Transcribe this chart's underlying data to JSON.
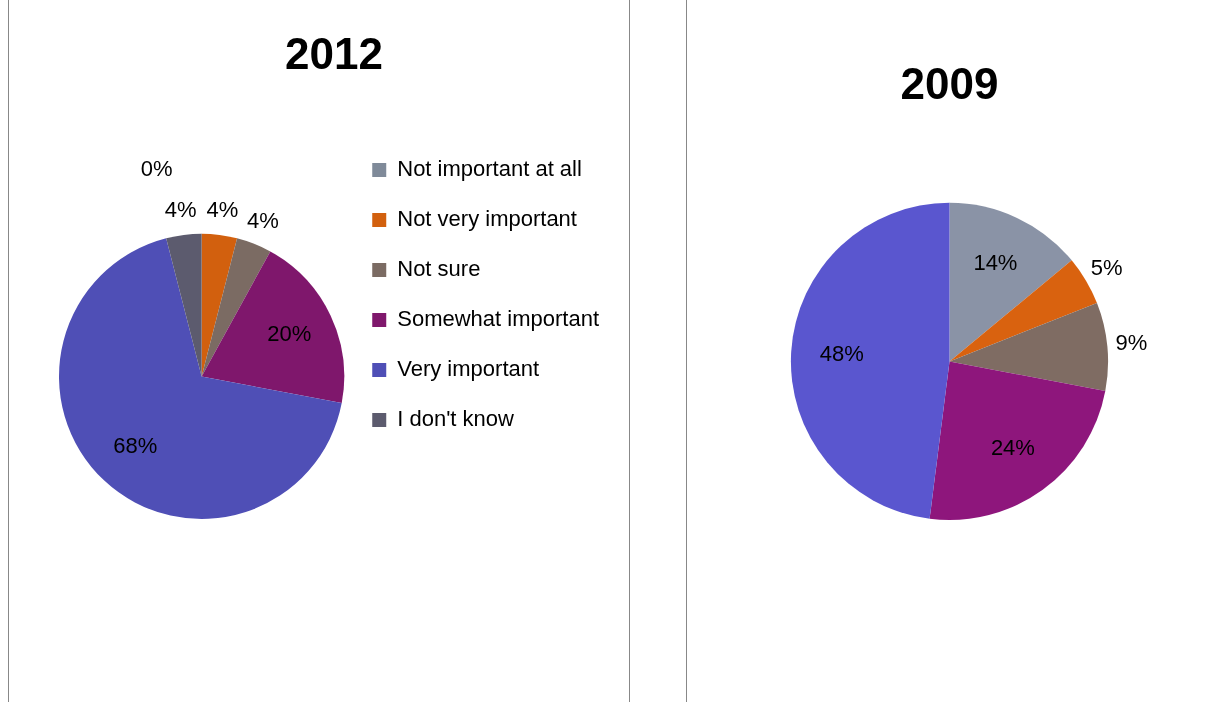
{
  "chart_data": [
    {
      "type": "pie",
      "title": "2012",
      "categories": [
        "Not important at all",
        "Not very important",
        "Not sure",
        "Somewhat important",
        "Very important",
        "I don't know"
      ],
      "values": [
        0,
        4,
        4,
        20,
        68,
        4
      ],
      "value_labels": [
        "0%",
        "4%",
        "4%",
        "20%",
        "68%",
        "4%"
      ],
      "colors": [
        "#7f8a99",
        "#d2600e",
        "#7b6b63",
        "#7f176c",
        "#4f4fb6",
        "#5c5b6e"
      ],
      "legend": "right"
    },
    {
      "type": "pie",
      "title": "2009",
      "categories": [
        null,
        null,
        null,
        null,
        null
      ],
      "values": [
        14,
        5,
        9,
        24,
        48
      ],
      "value_labels": [
        "14%",
        "5%",
        "9%",
        "24%",
        "48%"
      ],
      "colors": [
        "#8a93a6",
        "#d9620f",
        "#7f6c63",
        "#8e167c",
        "#5a56cf"
      ],
      "legend": false
    }
  ]
}
